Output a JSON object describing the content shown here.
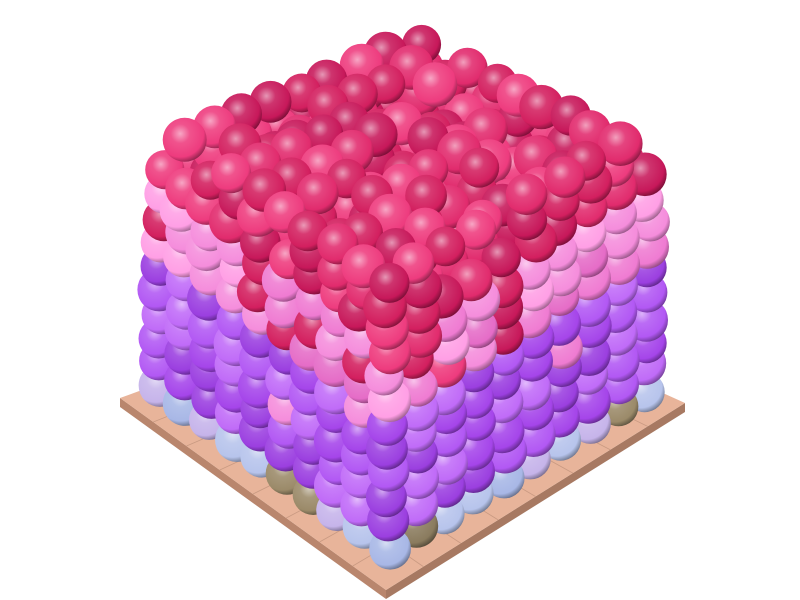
{
  "scene": {
    "background": "#ffffff",
    "substrate": {
      "top_color": "#e8b49a",
      "edge_color": "#b9866d",
      "grid_line_color": "#c99a82"
    },
    "layers": [
      {
        "name": "substrate-base",
        "colors": [
          "#b7c4ec",
          "#c6b4ea",
          "#a8b7e6"
        ]
      },
      {
        "name": "anchor-particles",
        "colors": [
          "#8a7b5e",
          "#9b8a69"
        ]
      },
      {
        "name": "violet-middle",
        "colors": [
          "#a545ea",
          "#b258f4",
          "#9b3fe0",
          "#c06bf8"
        ]
      },
      {
        "name": "pink-upper",
        "colors": [
          "#ef7bd2",
          "#f58ddc",
          "#e56cc7",
          "#ff9fe5"
        ]
      },
      {
        "name": "crimson-top",
        "colors": [
          "#d31f5f",
          "#e12b6d",
          "#c7185a",
          "#ee3b7e"
        ]
      }
    ]
  }
}
